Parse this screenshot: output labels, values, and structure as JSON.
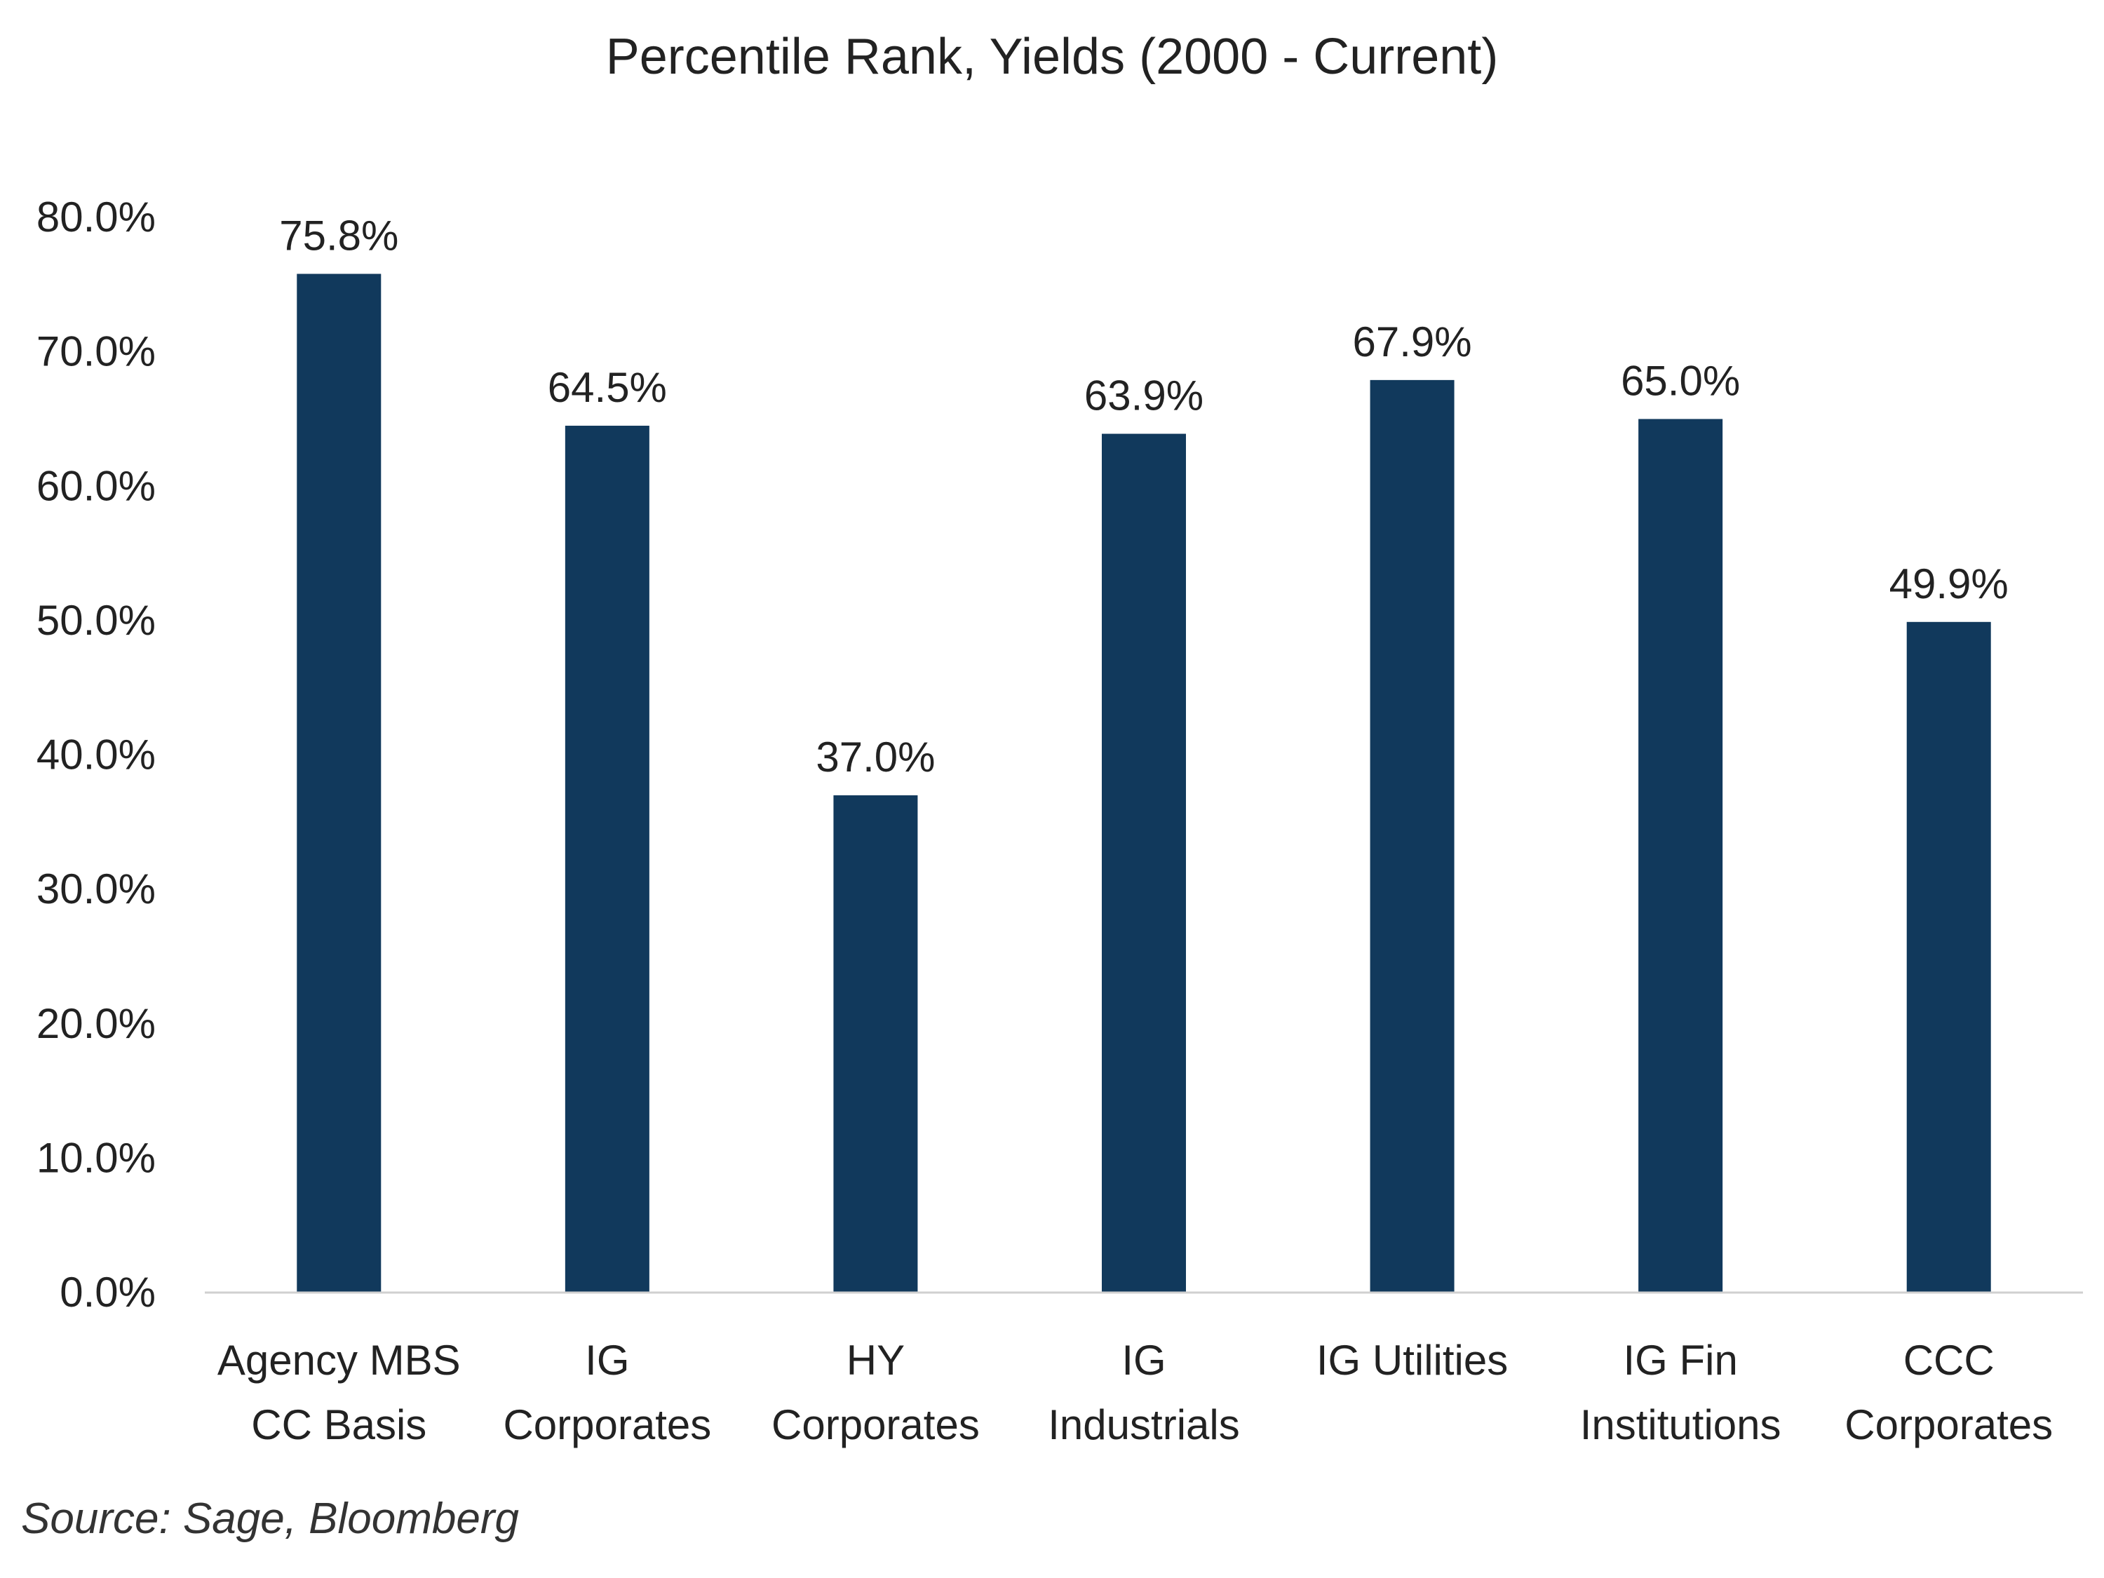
{
  "chart_data": {
    "type": "bar",
    "title": "Percentile Rank, Yields  (2000 - Current)",
    "categories": [
      [
        "Agency MBS",
        "CC Basis"
      ],
      [
        "IG",
        "Corporates"
      ],
      [
        "HY",
        "Corporates"
      ],
      [
        "IG",
        "Industrials"
      ],
      [
        "IG Utilities"
      ],
      [
        "IG Fin",
        "Institutions"
      ],
      [
        "CCC",
        "Corporates"
      ]
    ],
    "values": [
      75.8,
      64.5,
      37.0,
      63.9,
      67.9,
      65.0,
      49.9
    ],
    "data_labels": [
      "75.8%",
      "64.5%",
      "37.0%",
      "63.9%",
      "67.9%",
      "65.0%",
      "49.9%"
    ],
    "y_ticks": [
      "0.0%",
      "10.0%",
      "20.0%",
      "30.0%",
      "40.0%",
      "50.0%",
      "60.0%",
      "70.0%",
      "80.0%"
    ],
    "y_tick_values": [
      0,
      10,
      20,
      30,
      40,
      50,
      60,
      70,
      80
    ],
    "ylim": [
      0,
      80
    ],
    "xlabel": "",
    "ylabel": "",
    "grid": false,
    "legend": "none",
    "bar_color": "#11395c",
    "axis_color": "#d0d0d0"
  },
  "source": "Source: Sage, Bloomberg"
}
